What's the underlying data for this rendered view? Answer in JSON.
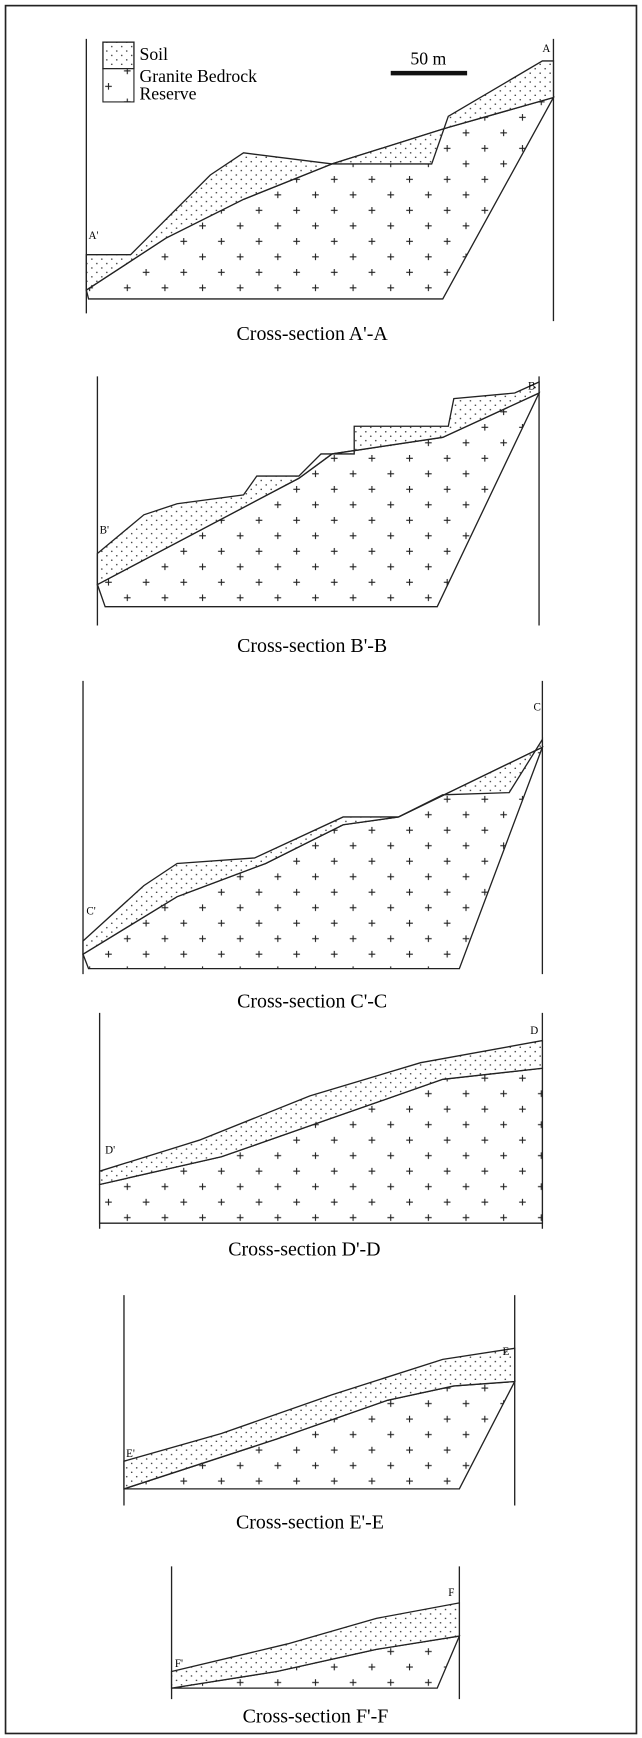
{
  "legend": {
    "items": [
      "Soil",
      "Granite Bedrock",
      "Reserve"
    ]
  },
  "scale_bar": {
    "label": "50 m"
  },
  "sections": [
    {
      "caption": "Cross-section A'-A",
      "start_label": "A'",
      "end_label": "A"
    },
    {
      "caption": "Cross-section B'-B",
      "start_label": "B'",
      "end_label": "B"
    },
    {
      "caption": "Cross-section C'-C",
      "start_label": "C'",
      "end_label": "C"
    },
    {
      "caption": "Cross-section D'-D",
      "start_label": "D'",
      "end_label": "D"
    },
    {
      "caption": "Cross-section E'-E",
      "start_label": "E'",
      "end_label": "E"
    },
    {
      "caption": "Cross-section F'-F",
      "start_label": "F'",
      "end_label": "F"
    }
  ]
}
